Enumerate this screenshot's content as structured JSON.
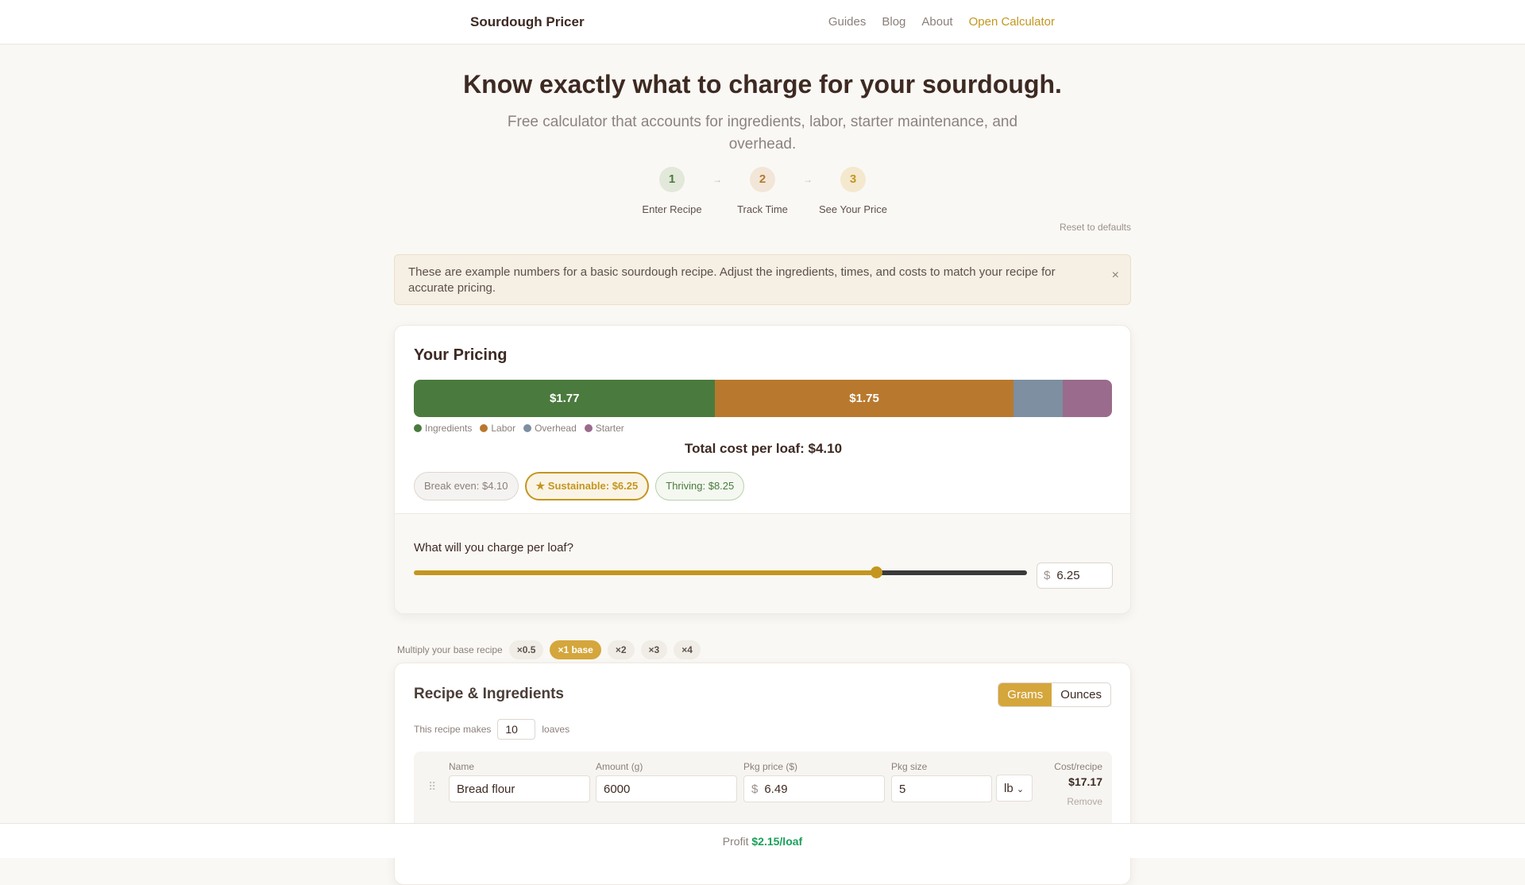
{
  "header": {
    "brand": "Sourdough Pricer",
    "nav": [
      "Guides",
      "Blog",
      "About"
    ],
    "cta": "Open Calculator"
  },
  "hero": {
    "title": "Know exactly what to charge for your sourdough.",
    "subtitle": "Free calculator that accounts for ingredients, labor, starter maintenance, and overhead.",
    "steps": [
      {
        "num": "1",
        "label": "Enter Recipe"
      },
      {
        "num": "2",
        "label": "Track Time"
      },
      {
        "num": "3",
        "label": "See Your Price"
      }
    ],
    "arrow": "→"
  },
  "reset": "Reset to defaults",
  "notice": {
    "text": "These are example numbers for a basic sourdough recipe. Adjust the ingredients, times, and costs to match your recipe for accurate pricing.",
    "close": "×"
  },
  "pricing": {
    "title": "Your Pricing",
    "segments": [
      {
        "name": "Ingredients",
        "value": 1.77,
        "label": "$1.77",
        "color": "#4a7a3d"
      },
      {
        "name": "Labor",
        "value": 1.75,
        "label": "$1.75",
        "color": "#b8792e"
      },
      {
        "name": "Overhead",
        "value": 0.29,
        "label": "",
        "color": "#7d8fa0"
      },
      {
        "name": "Starter",
        "value": 0.29,
        "label": "",
        "color": "#9a6b8c"
      }
    ],
    "total": "Total cost per loaf: $4.10",
    "tiers": {
      "break_even": "Break even: $4.10",
      "sustainable": "★ Sustainable: $6.25",
      "thriving": "Thriving: $8.25"
    },
    "question": "What will you charge per loaf?",
    "currency": "$",
    "price": "6.25",
    "slider_fraction": 0.754,
    "accent": "#c4961f"
  },
  "multiply": {
    "label": "Multiply your base recipe",
    "options": [
      "×0.5",
      "×1 base",
      "×2",
      "×3",
      "×4"
    ],
    "selected": 1
  },
  "recipe": {
    "title": "Recipe & Ingredients",
    "units": [
      "Grams",
      "Ounces"
    ],
    "makes_label": "This recipe makes",
    "loaves": "10",
    "loaves_label": "loaves",
    "columns": [
      "Name",
      "Amount (g)",
      "Pkg price ($)",
      "Pkg size",
      "Cost/recipe"
    ],
    "rows": [
      {
        "name": "Bread flour",
        "amount": "6000",
        "price": "6.49",
        "size": "5",
        "unit": "lb",
        "cost": "$17.17",
        "remove": "Remove"
      }
    ]
  },
  "footer": {
    "label": "Profit",
    "value": "$2.15/loaf"
  }
}
